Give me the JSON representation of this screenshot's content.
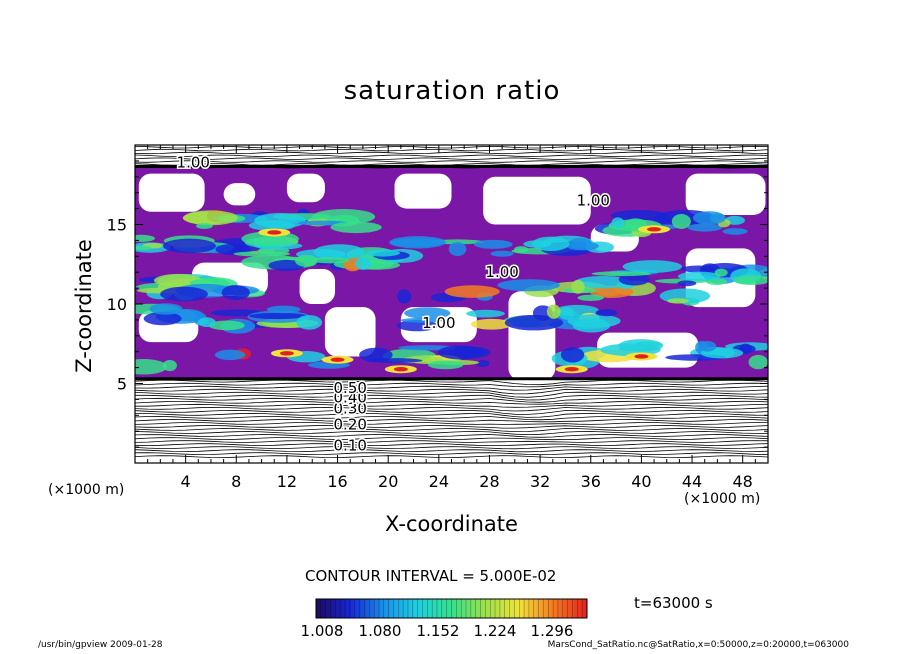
{
  "chart_data": {
    "type": "heatmap",
    "title": "saturation ratio",
    "xlabel": "X-coordinate",
    "ylabel": "Z-coordinate",
    "x_unit_left": "(×1000 m)",
    "x_unit_right": "(×1000 m)",
    "xlim": [
      0,
      50
    ],
    "ylim": [
      0,
      20
    ],
    "x_ticks": [
      4,
      8,
      12,
      16,
      20,
      24,
      28,
      32,
      36,
      40,
      44,
      48
    ],
    "y_ticks": [
      5,
      10,
      15
    ],
    "contour_interval": "CONTOUR INTERVAL = 5.000E-02",
    "time_label": "t=63000 s",
    "colorbar_ticks": [
      "1.008",
      "1.080",
      "1.152",
      "1.224",
      "1.296"
    ],
    "colorbar_range": [
      1.0,
      1.32
    ],
    "contour_labels": [
      {
        "text": "0.10",
        "x": 17.0,
        "y": 0.8
      },
      {
        "text": "0.20",
        "x": 17.0,
        "y": 2.1
      },
      {
        "text": "0.30",
        "x": 17.0,
        "y": 3.1
      },
      {
        "text": "0.40",
        "x": 17.0,
        "y": 3.8
      },
      {
        "text": "0.50",
        "x": 17.0,
        "y": 4.4
      },
      {
        "text": "1.00",
        "x": 4.6,
        "y": 18.6
      },
      {
        "text": "1.00",
        "x": 36.2,
        "y": 16.2
      },
      {
        "text": "1.00",
        "x": 29.0,
        "y": 11.7
      },
      {
        "text": "1.00",
        "x": 24.0,
        "y": 8.5
      }
    ],
    "colors": {
      "supersaturated_base": "#7b17a6",
      "colormap": [
        "#1e0a5c",
        "#1726d6",
        "#1a8fe8",
        "#1fd0e0",
        "#35e08a",
        "#9be14b",
        "#f0e23a",
        "#f47b22",
        "#e51f1f"
      ]
    }
  },
  "footer_left": "/usr/bin/gpview   2009-01-28",
  "footer_right": "MarsCond_SatRatio.nc@SatRatio,x=0:50000,z=0:20000,t=063000"
}
